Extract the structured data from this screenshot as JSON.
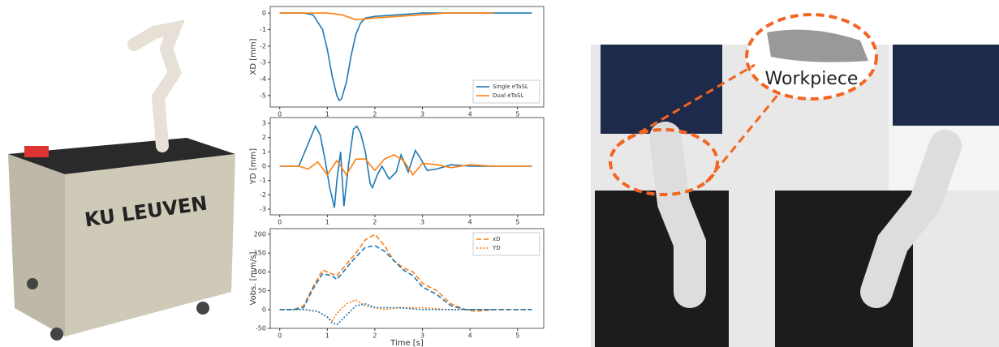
{
  "images": {
    "left_label": "KU LEUVEN",
    "right_label": "Workpiece"
  },
  "chart_data": [
    {
      "type": "line",
      "ylabel": "XD [mm]",
      "xlim": [
        -0.2,
        5.55
      ],
      "xticks": [
        0,
        1,
        2,
        3,
        4,
        5
      ],
      "ylim": [
        -5.7,
        0.4
      ],
      "yticks": [
        0,
        -1,
        -2,
        -3,
        -4,
        -5
      ],
      "legend": "lower right",
      "series": [
        {
          "name": "Single eTaSL",
          "color": "#1f77b4",
          "style": "solid",
          "x": [
            0,
            0.5,
            0.7,
            0.9,
            1.0,
            1.1,
            1.2,
            1.25,
            1.3,
            1.4,
            1.5,
            1.6,
            1.7,
            1.8,
            2.0,
            2.5,
            3,
            3.5,
            4,
            4.5,
            5,
            5.3
          ],
          "values": [
            0,
            0,
            -0.1,
            -1,
            -2.2,
            -3.8,
            -5,
            -5.3,
            -5.2,
            -4.2,
            -2.6,
            -1.3,
            -0.6,
            -0.3,
            -0.2,
            -0.1,
            0,
            0,
            0,
            0,
            0,
            0
          ]
        },
        {
          "name": "Dual eTaSL",
          "color": "#ff7f0e",
          "style": "solid",
          "x": [
            0,
            1,
            1.3,
            1.6,
            2,
            2.5,
            3,
            3.5,
            4,
            4.5
          ],
          "values": [
            0,
            0,
            -0.1,
            -0.4,
            -0.3,
            -0.2,
            -0.1,
            0,
            0,
            0
          ]
        }
      ]
    },
    {
      "type": "line",
      "ylabel": "YD [mm]",
      "xlim": [
        -0.2,
        5.55
      ],
      "xticks": [
        0,
        1,
        2,
        3,
        4,
        5
      ],
      "ylim": [
        -3.4,
        3.4
      ],
      "yticks": [
        3,
        2,
        1,
        0,
        -1,
        -2,
        -3
      ],
      "series": [
        {
          "name": null,
          "color": "#1f77b4",
          "style": "solid",
          "x": [
            0,
            0.4,
            0.55,
            0.75,
            0.85,
            0.95,
            1.05,
            1.15,
            1.2,
            1.28,
            1.35,
            1.45,
            1.55,
            1.62,
            1.7,
            1.8,
            1.9,
            1.95,
            2.05,
            2.15,
            2.3,
            2.45,
            2.55,
            2.7,
            2.85,
            2.95,
            3.1,
            3.3,
            3.6,
            4,
            4.5,
            5,
            5.3
          ],
          "values": [
            0,
            0,
            1.2,
            2.8,
            2.2,
            0.5,
            -1.5,
            -2.9,
            -1,
            1,
            -2.8,
            0.2,
            2.6,
            2.8,
            2.3,
            1,
            -1.2,
            -1.5,
            -0.6,
            0,
            -0.9,
            -0.4,
            0.8,
            -0.4,
            1.1,
            0.6,
            -0.3,
            -0.2,
            0.1,
            0,
            0,
            0,
            0
          ]
        },
        {
          "name": null,
          "color": "#ff7f0e",
          "style": "solid",
          "x": [
            0,
            0.4,
            0.6,
            0.8,
            1,
            1.2,
            1.4,
            1.6,
            1.8,
            2,
            2.2,
            2.4,
            2.6,
            2.8,
            3,
            3.3,
            3.6,
            4,
            4.5,
            5,
            5.3
          ],
          "values": [
            0,
            0,
            -0.2,
            0.3,
            -0.6,
            0.4,
            -0.6,
            0.5,
            0.5,
            -0.3,
            0.5,
            0.8,
            0.4,
            -0.6,
            0.2,
            0.1,
            -0.1,
            0.1,
            0,
            0,
            0
          ]
        }
      ]
    },
    {
      "type": "line",
      "ylabel": "Vobs. [mm/s]",
      "xlabel": "Time [s]",
      "xlim": [
        -0.2,
        5.55
      ],
      "xticks": [
        0,
        1,
        2,
        3,
        4,
        5
      ],
      "ylim": [
        -50,
        215
      ],
      "yticks": [
        -50,
        0,
        50,
        100,
        150,
        200
      ],
      "legend": "upper right",
      "series": [
        {
          "name": "xD",
          "color": "#ff7f0e",
          "style": "dashed",
          "x": [
            0,
            0.3,
            0.5,
            0.7,
            0.9,
            1.1,
            1.2,
            1.4,
            1.6,
            1.8,
            2,
            2.2,
            2.4,
            2.6,
            2.8,
            3,
            3.3,
            3.6,
            3.9,
            4.1,
            4.5,
            5,
            5.3
          ],
          "values": [
            0,
            0,
            10,
            60,
            105,
            95,
            90,
            120,
            150,
            185,
            200,
            170,
            130,
            110,
            100,
            70,
            50,
            15,
            0,
            -5,
            0,
            0,
            0
          ]
        },
        {
          "name": "YD",
          "color": "#ff7f0e",
          "style": "dotted",
          "x": [
            0,
            0.5,
            0.8,
            1,
            1.1,
            1.2,
            1.4,
            1.6,
            1.8,
            2,
            2.2,
            2.5,
            3,
            3.5,
            4,
            4.5
          ],
          "values": [
            0,
            0,
            -5,
            -20,
            -30,
            -10,
            15,
            25,
            10,
            5,
            0,
            5,
            5,
            0,
            0,
            0
          ]
        },
        {
          "name": null,
          "color": "#1f77b4",
          "style": "dashed",
          "x": [
            0,
            0.3,
            0.5,
            0.7,
            0.9,
            1.1,
            1.2,
            1.4,
            1.6,
            1.8,
            2,
            2.2,
            2.4,
            2.6,
            2.8,
            3,
            3.3,
            3.6,
            3.9,
            4.1,
            4.5,
            5,
            5.3
          ],
          "values": [
            0,
            0,
            5,
            55,
            95,
            90,
            80,
            110,
            140,
            165,
            170,
            155,
            130,
            105,
            90,
            60,
            40,
            10,
            0,
            0,
            0,
            0,
            0
          ]
        },
        {
          "name": null,
          "color": "#1f77b4",
          "style": "dotted",
          "x": [
            0,
            0.5,
            0.8,
            1,
            1.1,
            1.2,
            1.4,
            1.6,
            1.8,
            2,
            2.2,
            2.5,
            3,
            3.5,
            4,
            4.5
          ],
          "values": [
            0,
            0,
            -5,
            -20,
            -35,
            -40,
            -15,
            10,
            15,
            5,
            5,
            5,
            0,
            0,
            0,
            0
          ]
        }
      ]
    }
  ]
}
